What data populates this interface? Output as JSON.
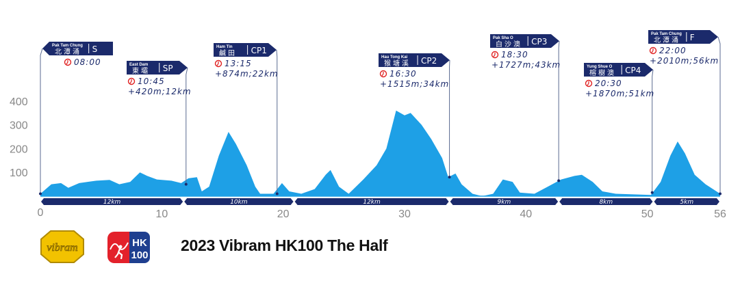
{
  "title": "2023 Vibram HK100 The Half",
  "logos": {
    "sponsor": "vibram",
    "event_top": "HK",
    "event_bottom": "100"
  },
  "colors": {
    "profile": "#1ea0e6",
    "navy": "#1b2a6b",
    "clock": "#e02020",
    "axis_text": "#888888"
  },
  "chart_data": {
    "type": "area",
    "title": "",
    "xlabel": "",
    "ylabel": "",
    "xlim": [
      0,
      56
    ],
    "ylim": [
      0,
      400
    ],
    "x_ticks": [
      0,
      10,
      20,
      30,
      40,
      50,
      56
    ],
    "y_ticks": [
      100,
      200,
      300,
      400
    ],
    "grid": false,
    "profile": [
      [
        0,
        10
      ],
      [
        0.9,
        50
      ],
      [
        1.7,
        55
      ],
      [
        2.3,
        35
      ],
      [
        3.2,
        55
      ],
      [
        4.6,
        65
      ],
      [
        5.7,
        68
      ],
      [
        6.5,
        50
      ],
      [
        7.4,
        60
      ],
      [
        8.2,
        100
      ],
      [
        8.8,
        85
      ],
      [
        9.6,
        70
      ],
      [
        10.8,
        65
      ],
      [
        11.6,
        55
      ],
      [
        12.2,
        75
      ],
      [
        12.9,
        80
      ],
      [
        13.3,
        20
      ],
      [
        13.9,
        40
      ],
      [
        14.7,
        170
      ],
      [
        15.5,
        270
      ],
      [
        16.1,
        220
      ],
      [
        17.0,
        130
      ],
      [
        17.7,
        40
      ],
      [
        18.1,
        10
      ],
      [
        19.2,
        10
      ],
      [
        19.9,
        55
      ],
      [
        20.5,
        20
      ],
      [
        21.5,
        10
      ],
      [
        22.6,
        30
      ],
      [
        23.5,
        90
      ],
      [
        23.9,
        110
      ],
      [
        24.6,
        40
      ],
      [
        25.4,
        10
      ],
      [
        26.6,
        70
      ],
      [
        27.7,
        130
      ],
      [
        28.5,
        200
      ],
      [
        29.3,
        360
      ],
      [
        30.0,
        340
      ],
      [
        30.5,
        350
      ],
      [
        31.4,
        300
      ],
      [
        32.2,
        240
      ],
      [
        33.1,
        160
      ],
      [
        33.6,
        80
      ],
      [
        34.2,
        95
      ],
      [
        34.7,
        50
      ],
      [
        35.6,
        10
      ],
      [
        36.4,
        0
      ],
      [
        37.3,
        10
      ],
      [
        38.1,
        70
      ],
      [
        38.9,
        60
      ],
      [
        39.5,
        15
      ],
      [
        40.7,
        10
      ],
      [
        41.8,
        40
      ],
      [
        42.9,
        70
      ],
      [
        44.0,
        85
      ],
      [
        44.6,
        90
      ],
      [
        45.5,
        60
      ],
      [
        46.3,
        20
      ],
      [
        47.4,
        10
      ],
      [
        50.3,
        5
      ],
      [
        51.1,
        60
      ],
      [
        51.9,
        170
      ],
      [
        52.5,
        230
      ],
      [
        53.1,
        180
      ],
      [
        53.9,
        90
      ],
      [
        54.8,
        50
      ],
      [
        56,
        10
      ]
    ],
    "segments": [
      {
        "label": "12km",
        "end": 11.8
      },
      {
        "label": "10km",
        "end": 20.9
      },
      {
        "label": "12km",
        "end": 33.7
      },
      {
        "label": "9km",
        "end": 42.7
      },
      {
        "label": "8km",
        "end": 50.5
      },
      {
        "label": "5km",
        "end": 56
      }
    ],
    "checkpoints": [
      {
        "code": "S",
        "name_en": "Pak Tam Chung",
        "name_zh": "北潭涌",
        "time": "08:00",
        "gain": "",
        "km_at": 0,
        "elev": 10
      },
      {
        "code": "SP",
        "name_en": "East Dam",
        "name_zh": "東壩",
        "time": "10:45",
        "gain": "+420m;12km",
        "km_at": 12.0,
        "elev": 50
      },
      {
        "code": "CP1",
        "name_en": "Ham Tin",
        "name_zh": "鹹田",
        "time": "13:15",
        "gain": "+874m;22km",
        "km_at": 19.5,
        "elev": 10
      },
      {
        "code": "CP2",
        "name_en": "Hau Tong Kai",
        "name_zh": "猴塘溪",
        "time": "16:30",
        "gain": "+1515m;34km",
        "km_at": 33.7,
        "elev": 80
      },
      {
        "code": "CP3",
        "name_en": "Pak Sha O",
        "name_zh": "白沙澳",
        "time": "18:30",
        "gain": "+1727m;43km",
        "km_at": 42.7,
        "elev": 65
      },
      {
        "code": "CP4",
        "name_en": "Yung Shue O",
        "name_zh": "榕樹澳",
        "time": "20:30",
        "gain": "+1870m;51km",
        "km_at": 50.4,
        "elev": 15
      },
      {
        "code": "F",
        "name_en": "Pak Tam Chung",
        "name_zh": "北潭涌",
        "time": "22:00",
        "gain": "+2010m;56km",
        "km_at": 56,
        "elev": 10
      }
    ]
  }
}
